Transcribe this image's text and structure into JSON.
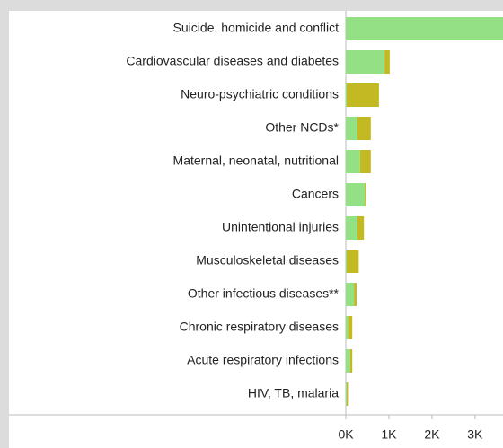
{
  "chart_data": {
    "type": "stacked-bar-horizontal",
    "categories": [
      "Suicide, homicide and conflict",
      "Cardiovascular diseases and diabetes",
      "Neuro-psychiatric conditions",
      "Other NCDs*",
      "Maternal, neonatal, nutritional",
      "Cancers",
      "Unintentional injuries",
      "Musculoskeletal diseases",
      "Other infectious diseases**",
      "Chronic respiratory diseases",
      "Acute respiratory infections",
      "HIV, TB, malaria"
    ],
    "series": [
      {
        "color": "#93e184",
        "values": [
          3900,
          900,
          20,
          270,
          330,
          440,
          270,
          20,
          190,
          50,
          100,
          20
        ]
      },
      {
        "color": "#c2b923",
        "values": [
          100,
          120,
          750,
          310,
          250,
          30,
          150,
          280,
          60,
          100,
          50,
          30
        ]
      }
    ],
    "xlim": [
      0,
      3650
    ],
    "xticks": [
      {
        "value": 0,
        "label": "0K"
      },
      {
        "value": 1000,
        "label": "1K"
      },
      {
        "value": 2000,
        "label": "2K"
      },
      {
        "value": 3000,
        "label": "3K"
      }
    ]
  }
}
